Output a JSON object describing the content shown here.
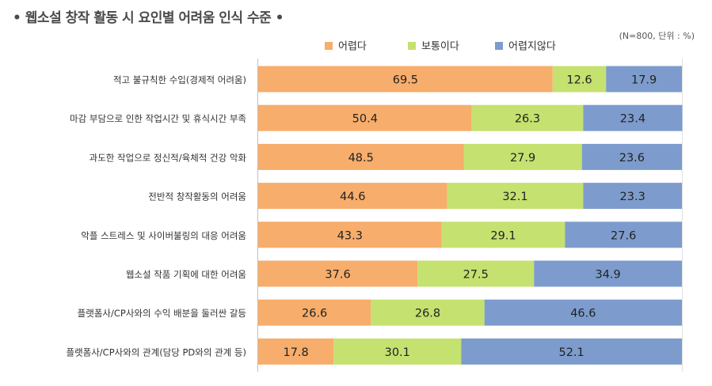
{
  "chart_data": {
    "type": "bar",
    "orientation": "horizontal-stacked",
    "title": "• 웹소설 창작 활동 시 요인별 어려움 인식 수준 •",
    "note": "(N=800, 단위 : %)",
    "xlim": [
      0,
      100
    ],
    "legend_position": "top-center",
    "categories": [
      "적고 불규칙한 수입(경제적 어려움)",
      "마감 부담으로 인한 작업시간 및 휴식시간 부족",
      "과도한 작업으로 정신적/육체적 건강 악화",
      "전반적 창작활동의 어려움",
      "악플 스트레스 및 사이버불링의 대응 어려움",
      "웹소설 작품 기획에 대한 어려움",
      "플랫폼사/CP사와의 수익 배분을 둘러싼 갈등",
      "플랫폼사/CP사와의 관계(담당 PD와의 관계 등)"
    ],
    "series": [
      {
        "name": "어렵다",
        "color": "#f7ad6b",
        "values": [
          69.5,
          50.4,
          48.5,
          44.6,
          43.3,
          37.6,
          26.6,
          17.8
        ]
      },
      {
        "name": "보통이다",
        "color": "#c5e16f",
        "values": [
          12.6,
          26.3,
          27.9,
          32.1,
          29.1,
          27.5,
          26.8,
          30.1
        ]
      },
      {
        "name": "어렵지않다",
        "color": "#7d9ccd",
        "values": [
          17.9,
          23.4,
          23.6,
          23.3,
          27.6,
          34.9,
          46.6,
          52.1
        ]
      }
    ]
  }
}
